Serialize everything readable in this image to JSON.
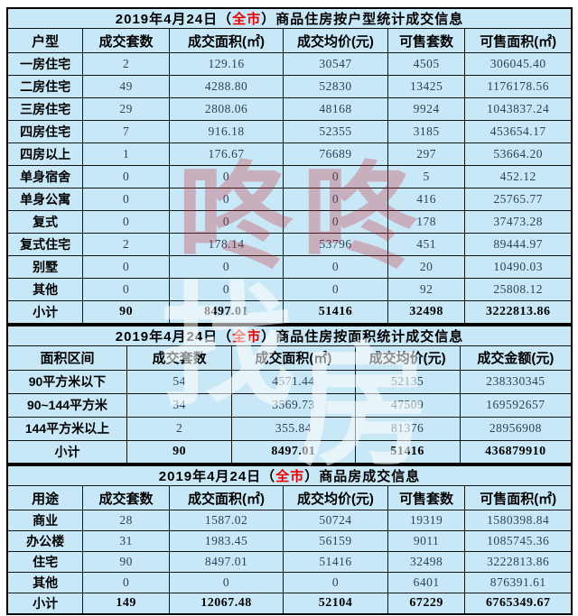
{
  "colors": {
    "cell_background": "#c9e8f7",
    "border": "#141414",
    "title_highlight_red": "#e60000",
    "number_text": "#2e4057",
    "watermark_red": "rgba(198,44,56,0.30)",
    "watermark_white": "rgba(255,255,255,0.55)"
  },
  "watermark": {
    "red_text": "咚咚",
    "white_char_1": "找",
    "white_char_2": "房"
  },
  "tables": [
    {
      "id": "housing-by-unit-type",
      "title": {
        "prefix": "2019年4月24日（",
        "highlight": "全市",
        "suffix": "）商品住房按户型统计成交信息"
      },
      "columns": [
        "户型",
        "成交套数",
        "成交面积(㎡)",
        "成交均价(元)",
        "可售套数",
        "可售面积(㎡)"
      ],
      "col_widths": [
        "13.4%",
        "15.3%",
        "20.2%",
        "18.5%",
        "13.7%",
        "18.9%"
      ],
      "rows": [
        [
          "一房住宅",
          "2",
          "129.16",
          "30547",
          "4505",
          "306045.40"
        ],
        [
          "二房住宅",
          "49",
          "4288.80",
          "52830",
          "13425",
          "1176178.56"
        ],
        [
          "三房住宅",
          "29",
          "2808.06",
          "48168",
          "9924",
          "1043837.24"
        ],
        [
          "四房住宅",
          "7",
          "916.18",
          "52355",
          "3185",
          "453654.17"
        ],
        [
          "四房以上",
          "1",
          "176.67",
          "76689",
          "297",
          "53664.20"
        ],
        [
          "单身宿舍",
          "0",
          "0",
          "0",
          "5",
          "452.12"
        ],
        [
          "单身公寓",
          "0",
          "0",
          "0",
          "416",
          "25765.77"
        ],
        [
          "复式",
          "0",
          "0",
          "0",
          "178",
          "37473.28"
        ],
        [
          "复式住宅",
          "2",
          "178.14",
          "53796",
          "451",
          "89444.97"
        ],
        [
          "别墅",
          "0",
          "0",
          "0",
          "20",
          "10490.03"
        ],
        [
          "其他",
          "0",
          "0",
          "0",
          "92",
          "25808.12"
        ]
      ],
      "total_row": [
        "小计",
        "90",
        "8497.01",
        "51416",
        "32498",
        "3222813.86"
      ]
    },
    {
      "id": "housing-by-area",
      "title": {
        "prefix": "2019年4月24日（",
        "highlight": "全市",
        "suffix": "）商品住房按面积统计成交信息"
      },
      "columns": [
        "面积区间",
        "成交套数",
        "成交面积(㎡)",
        "成交均价(元)",
        "成交金额(元)"
      ],
      "col_widths": [
        "21.2%",
        "18.6%",
        "21.8%",
        "18.6%",
        "19.8%"
      ],
      "rows": [
        [
          "90平方米以下",
          "54",
          "4571.44",
          "52135",
          "238330345"
        ],
        [
          "90~144平方米",
          "34",
          "3569.73",
          "47509",
          "169592657"
        ],
        [
          "144平方米以上",
          "2",
          "355.84",
          "81376",
          "28956908"
        ]
      ],
      "total_row": [
        "小计",
        "90",
        "8497.01",
        "51416",
        "436879910"
      ]
    },
    {
      "id": "commodity-housing",
      "title": {
        "prefix": "2019年4月24日（",
        "highlight": "全市",
        "suffix": "）商品房成交信息"
      },
      "columns": [
        "用途",
        "成交套数",
        "成交面积(㎡)",
        "成交均价(元)",
        "可售套数",
        "可售面积(㎡)"
      ],
      "col_widths": [
        "13.4%",
        "15.3%",
        "20.2%",
        "18.5%",
        "13.7%",
        "18.9%"
      ],
      "rows": [
        [
          "商业",
          "28",
          "1587.02",
          "50724",
          "19319",
          "1580398.84"
        ],
        [
          "办公楼",
          "31",
          "1983.45",
          "56159",
          "9011",
          "1085745.36"
        ],
        [
          "住宅",
          "90",
          "8497.01",
          "51416",
          "32498",
          "3222813.86"
        ],
        [
          "其他",
          "0",
          "0",
          "0",
          "6401",
          "876391.61"
        ]
      ],
      "total_row": [
        "小计",
        "149",
        "12067.48",
        "52104",
        "67229",
        "6765349.67"
      ]
    }
  ]
}
